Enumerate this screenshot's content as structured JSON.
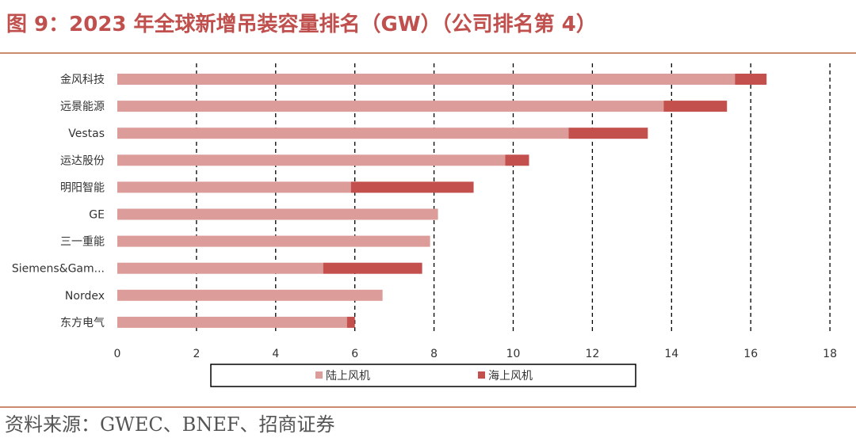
{
  "title": "图 9：2023 年全球新增吊装容量排名（GW）（公司排名第 4）",
  "source": "资料来源：GWEC、BNEF、招商证券",
  "colors": {
    "onshore": "#dc9c99",
    "offshore": "#c4504e",
    "title": "#c0504d"
  },
  "chart_data": {
    "type": "bar",
    "orientation": "horizontal",
    "stacked": true,
    "categories": [
      "金风科技",
      "远景能源",
      "Vestas",
      "运达股份",
      "明阳智能",
      "GE",
      "三一重能",
      "Siemens&Gam...",
      "Nordex",
      "东方电气"
    ],
    "series": [
      {
        "name": "陆上风机",
        "values": [
          15.6,
          13.8,
          11.4,
          9.8,
          5.9,
          8.1,
          7.9,
          5.2,
          6.7,
          5.8
        ]
      },
      {
        "name": "海上风机",
        "values": [
          0.8,
          1.6,
          2.0,
          0.6,
          3.1,
          0.0,
          0.0,
          2.5,
          0.0,
          0.2
        ]
      }
    ],
    "xlim": [
      0,
      18
    ],
    "xticks": [
      "0",
      "2",
      "4",
      "6",
      "8",
      "10",
      "12",
      "14",
      "16",
      "18"
    ],
    "grid": "vertical dashed",
    "legend_position": "bottom"
  }
}
